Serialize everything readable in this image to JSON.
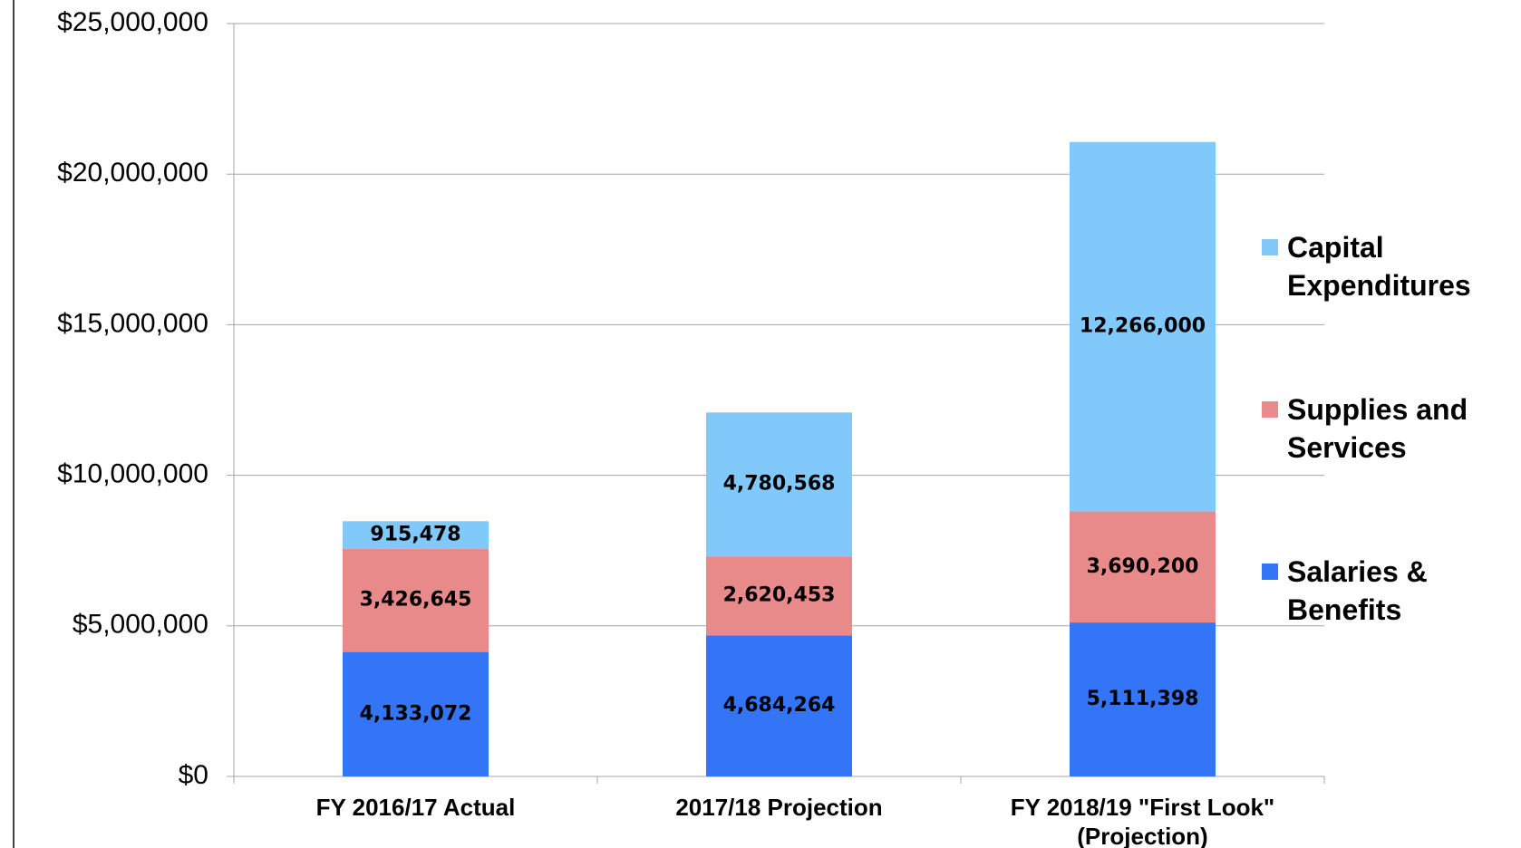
{
  "chart_data": {
    "type": "stacked_bar",
    "categories": [
      "FY 2016/17 Actual",
      "2017/18 Projection",
      "FY 2018/19 \"First Look\" (Projection)"
    ],
    "series": [
      {
        "name": "Salaries & Benefits",
        "color": "#3375f6",
        "values": [
          4133072,
          4684264,
          5111398
        ],
        "value_labels": [
          "4,133,072",
          "4,684,264",
          "5,111,398"
        ]
      },
      {
        "name": "Supplies and Services",
        "color": "#e8898a",
        "values": [
          3426645,
          2620453,
          3690200
        ],
        "value_labels": [
          "3,426,645",
          "2,620,453",
          "3,690,200"
        ]
      },
      {
        "name": "Capital Expenditures",
        "color": "#81c8fb",
        "values": [
          915478,
          4780568,
          12266000
        ],
        "value_labels": [
          "915,478",
          "4,780,568",
          "12,266,000"
        ]
      }
    ],
    "ylim": [
      0,
      25000000
    ],
    "yticks": [
      {
        "value": 0,
        "label": "$0"
      },
      {
        "value": 5000000,
        "label": "$5,000,000"
      },
      {
        "value": 10000000,
        "label": "$10,000,000"
      },
      {
        "value": 15000000,
        "label": "$15,000,000"
      },
      {
        "value": 20000000,
        "label": "$20,000,000"
      },
      {
        "value": 25000000,
        "label": "$25,000,000"
      }
    ],
    "grid": true,
    "legend": "right"
  }
}
